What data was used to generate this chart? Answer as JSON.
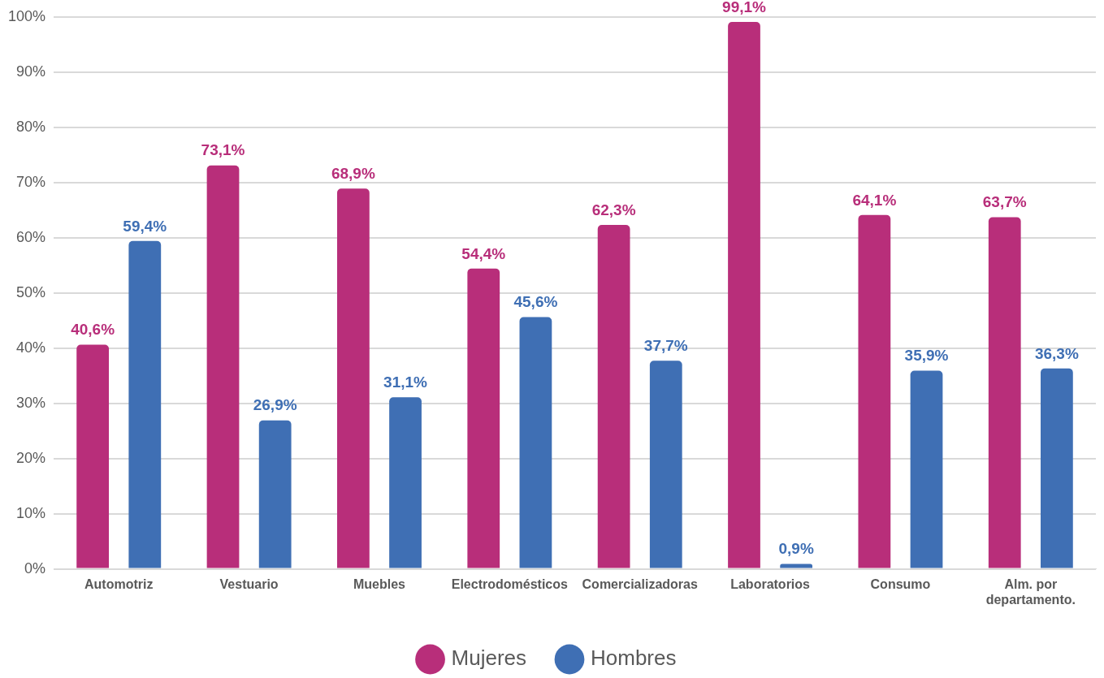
{
  "chart_data": {
    "type": "bar",
    "categories": [
      "Automotriz",
      "Vestuario",
      "Muebles",
      "Electrodomésticos",
      "Comercializadoras",
      "Laboratorios",
      "Consumo",
      "Alm. por departamento."
    ],
    "series": [
      {
        "name": "Mujeres",
        "color": "#b82e7a",
        "values": [
          40.6,
          73.1,
          68.9,
          54.4,
          62.3,
          99.1,
          64.1,
          63.7
        ],
        "value_labels": [
          "40,6%",
          "73,1%",
          "68,9%",
          "54,4%",
          "62,3%",
          "99,1%",
          "64,1%",
          "63,7%"
        ]
      },
      {
        "name": "Hombres",
        "color": "#3f6fb4",
        "values": [
          59.4,
          26.9,
          31.1,
          45.6,
          37.7,
          0.9,
          35.9,
          36.3
        ],
        "value_labels": [
          "59,4%",
          "26,9%",
          "31,1%",
          "45,6%",
          "37,7%",
          "0,9%",
          "35,9%",
          "36,3%"
        ]
      }
    ],
    "ylim": [
      0,
      100
    ],
    "yticks": [
      {
        "value": 0,
        "label": "0%"
      },
      {
        "value": 10,
        "label": "10%"
      },
      {
        "value": 20,
        "label": "20%"
      },
      {
        "value": 30,
        "label": "30%"
      },
      {
        "value": 40,
        "label": "40%"
      },
      {
        "value": 50,
        "label": "50%"
      },
      {
        "value": 60,
        "label": "60%"
      },
      {
        "value": 70,
        "label": "70%"
      },
      {
        "value": 80,
        "label": "80%"
      },
      {
        "value": 90,
        "label": "90%"
      },
      {
        "value": 100,
        "label": "100%"
      }
    ],
    "grid": "y",
    "legend": "bottom"
  }
}
